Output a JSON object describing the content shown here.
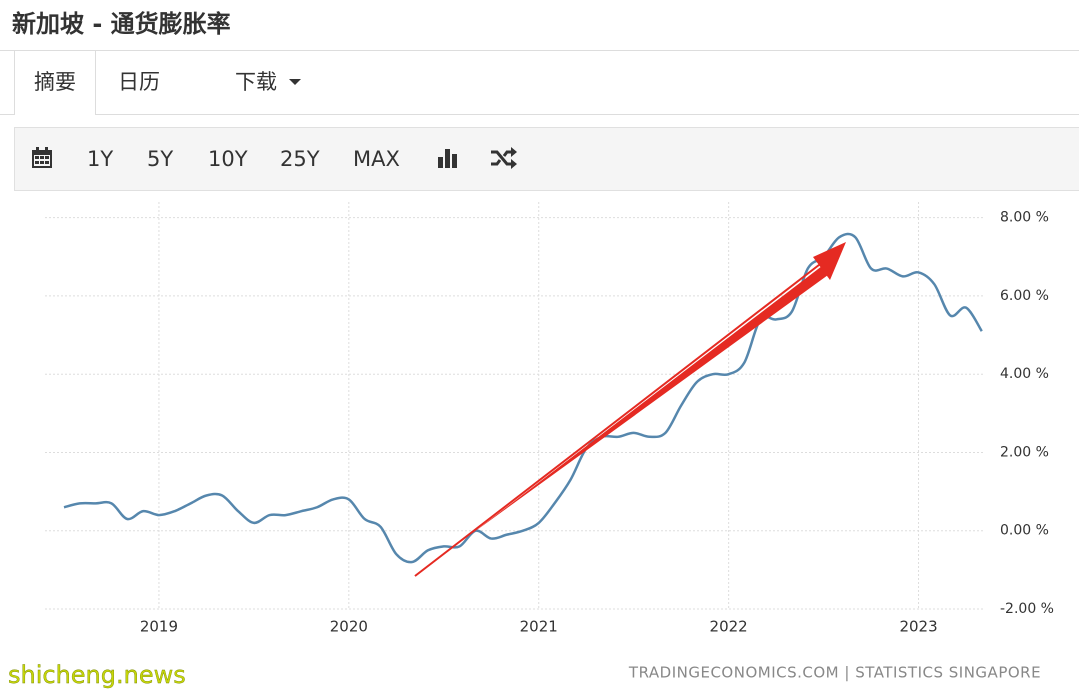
{
  "header": {
    "title": "新加坡 - 通货膨胀率"
  },
  "tabs": [
    "摘要",
    "日历",
    "下载"
  ],
  "toolbar": [
    "1Y",
    "5Y",
    "10Y",
    "25Y",
    "MAX"
  ],
  "watermark": "shicheng.news",
  "chart_data": {
    "type": "line",
    "x": [
      2018.5,
      2018.583,
      2018.667,
      2018.75,
      2018.833,
      2018.917,
      2019,
      2019.083,
      2019.167,
      2019.25,
      2019.333,
      2019.417,
      2019.5,
      2019.583,
      2019.667,
      2019.75,
      2019.833,
      2019.917,
      2020,
      2020.083,
      2020.167,
      2020.25,
      2020.333,
      2020.417,
      2020.5,
      2020.583,
      2020.667,
      2020.75,
      2020.833,
      2020.917,
      2021,
      2021.083,
      2021.167,
      2021.25,
      2021.333,
      2021.417,
      2021.5,
      2021.583,
      2021.667,
      2021.75,
      2021.833,
      2021.917,
      2022,
      2022.083,
      2022.167,
      2022.25,
      2022.333,
      2022.417,
      2022.5,
      2022.583,
      2022.667,
      2022.75,
      2022.833,
      2022.917,
      2023,
      2023.083,
      2023.167,
      2023.25,
      2023.333
    ],
    "values": [
      0.6,
      0.7,
      0.7,
      0.7,
      0.3,
      0.5,
      0.4,
      0.5,
      0.7,
      0.9,
      0.9,
      0.5,
      0.2,
      0.4,
      0.4,
      0.5,
      0.6,
      0.8,
      0.8,
      0.3,
      0.1,
      -0.6,
      -0.8,
      -0.5,
      -0.4,
      -0.4,
      0.0,
      -0.2,
      -0.1,
      0.0,
      0.2,
      0.7,
      1.3,
      2.1,
      2.4,
      2.4,
      2.5,
      2.4,
      2.5,
      3.2,
      3.8,
      4.0,
      4.0,
      4.3,
      5.4,
      5.4,
      5.6,
      6.7,
      7.0,
      7.5,
      7.5,
      6.7,
      6.7,
      6.5,
      6.6,
      6.3,
      5.5,
      5.7,
      5.1
    ],
    "color": "#5687ad",
    "xlim": [
      2018.4,
      2023.35
    ],
    "xticks": [
      2019,
      2020,
      2021,
      2022,
      2023
    ],
    "ylim": [
      -2,
      8.4
    ],
    "yticks": [
      {
        "value": -2,
        "label": "-2.00 %"
      },
      {
        "value": 0,
        "label": "0.00 %"
      },
      {
        "value": 2,
        "label": "2.00 %"
      },
      {
        "value": 4,
        "label": "4.00 %"
      },
      {
        "value": 6,
        "label": "6.00 %"
      },
      {
        "value": 8,
        "label": "8.00 %"
      }
    ],
    "grid": true,
    "y_axis_side": "right",
    "source": "TRADINGECONOMICS.COM | STATISTICS SINGAPORE"
  }
}
